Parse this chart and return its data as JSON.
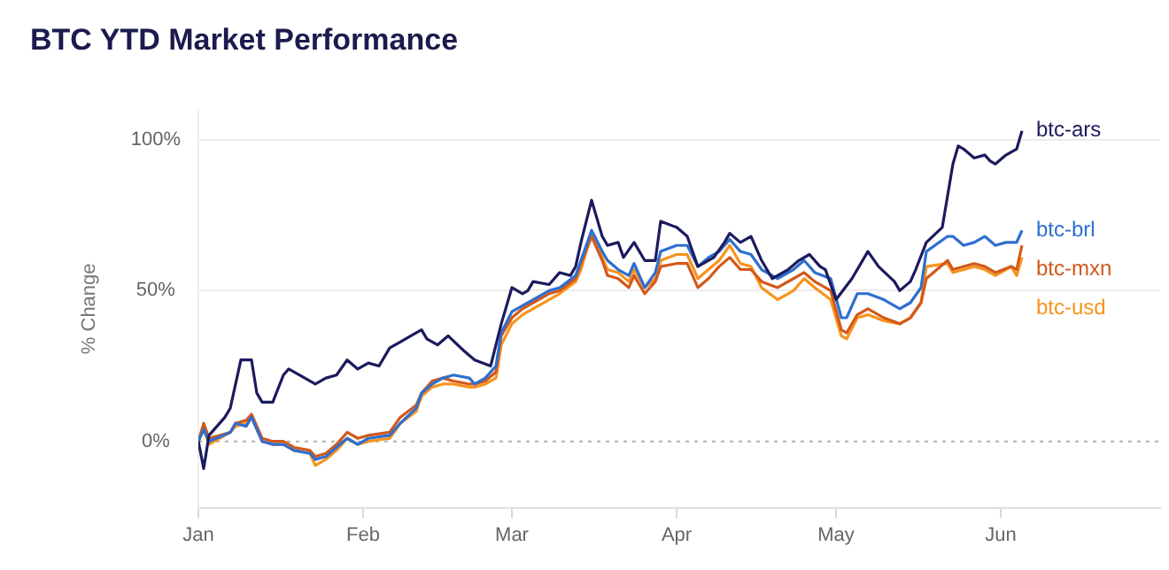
{
  "chart_data": {
    "type": "line",
    "title": "BTC YTD Market Performance",
    "ylabel": "% Change",
    "xlim": [
      "--01-01",
      "--07-01"
    ],
    "xticks": [
      {
        "value": "--01-01",
        "label": "Jan"
      },
      {
        "value": "--02-01",
        "label": "Feb"
      },
      {
        "value": "--03-01",
        "label": "Mar"
      },
      {
        "value": "--04-01",
        "label": "Apr"
      },
      {
        "value": "--05-01",
        "label": "May"
      },
      {
        "value": "--06-01",
        "label": "Jun"
      }
    ],
    "ylim": [
      -22,
      110
    ],
    "yticks": [
      {
        "value": 0,
        "label": "0%"
      },
      {
        "value": 50,
        "label": "50%"
      },
      {
        "value": 100,
        "label": "100%"
      }
    ],
    "grid": "y",
    "legend": false,
    "marker": "none",
    "line_style": "solid",
    "ref_lines": [
      {
        "axis": "y",
        "value": 0,
        "label": null,
        "color": "#b0b0b0",
        "line_style": "dotted"
      }
    ],
    "series": [
      {
        "name": "btc-ars",
        "color": "#1b1b5e",
        "x": [
          "--01-01",
          "--01-02",
          "--01-03",
          "--01-06",
          "--01-07",
          "--01-09",
          "--01-11",
          "--01-12",
          "--01-13",
          "--01-15",
          "--01-17",
          "--01-18",
          "--01-20",
          "--01-23",
          "--01-25",
          "--01-27",
          "--01-29",
          "--01-31",
          "--02-02",
          "--02-04",
          "--02-06",
          "--02-08",
          "--02-10",
          "--02-12",
          "--02-13",
          "--02-15",
          "--02-17",
          "--02-20",
          "--02-22",
          "--02-25",
          "--02-27",
          "--03-01",
          "--03-03",
          "--03-04",
          "--03-05",
          "--03-08",
          "--03-10",
          "--03-12",
          "--03-13",
          "--03-14",
          "--03-16",
          "--03-18",
          "--03-19",
          "--03-21",
          "--03-22",
          "--03-24",
          "--03-26",
          "--03-28",
          "--03-29",
          "--04-01",
          "--04-03",
          "--04-05",
          "--04-08",
          "--04-10",
          "--04-11",
          "--04-13",
          "--04-15",
          "--04-17",
          "--04-19",
          "--04-22",
          "--04-24",
          "--04-26",
          "--04-28",
          "--04-29",
          "--05-01",
          "--05-04",
          "--05-07",
          "--05-09",
          "--05-12",
          "--05-13",
          "--05-15",
          "--05-16",
          "--05-18",
          "--05-21",
          "--05-23",
          "--05-24",
          "--05-25",
          "--05-27",
          "--05-29",
          "--05-30",
          "--05-31",
          "--06-02",
          "--06-04",
          "--06-05"
        ],
        "values": [
          0,
          -9,
          2,
          8,
          11,
          27,
          27,
          16,
          13,
          13,
          22,
          24,
          22,
          19,
          21,
          22,
          27,
          24,
          26,
          25,
          31,
          33,
          35,
          37,
          34,
          32,
          35,
          30,
          27,
          25,
          39,
          51,
          49,
          50,
          53,
          52,
          56,
          55,
          58,
          66,
          80,
          68,
          65,
          66,
          61,
          66,
          60,
          60,
          73,
          71,
          68,
          58,
          61,
          66,
          69,
          66,
          68,
          60,
          54,
          57,
          60,
          62,
          58,
          57,
          47,
          54,
          63,
          58,
          53,
          50,
          53,
          57,
          66,
          71,
          92,
          98,
          97,
          94,
          95,
          93,
          92,
          95,
          97,
          103
        ]
      },
      {
        "name": "btc-brl",
        "color": "#2f6fd0",
        "x": [
          "--01-01",
          "--01-02",
          "--01-03",
          "--01-07",
          "--01-08",
          "--01-10",
          "--01-11",
          "--01-13",
          "--01-15",
          "--01-17",
          "--01-19",
          "--01-22",
          "--01-23",
          "--01-25",
          "--01-27",
          "--01-29",
          "--01-31",
          "--02-02",
          "--02-06",
          "--02-08",
          "--02-11",
          "--02-12",
          "--02-14",
          "--02-16",
          "--02-18",
          "--02-21",
          "--02-22",
          "--02-24",
          "--02-26",
          "--02-27",
          "--03-01",
          "--03-03",
          "--03-05",
          "--03-08",
          "--03-10",
          "--03-13",
          "--03-14",
          "--03-16",
          "--03-18",
          "--03-19",
          "--03-21",
          "--03-23",
          "--03-24",
          "--03-26",
          "--03-28",
          "--03-29",
          "--04-01",
          "--04-03",
          "--04-05",
          "--04-07",
          "--04-09",
          "--04-11",
          "--04-13",
          "--04-15",
          "--04-17",
          "--04-20",
          "--04-23",
          "--04-25",
          "--04-27",
          "--04-30",
          "--05-02",
          "--05-03",
          "--05-05",
          "--05-07",
          "--05-10",
          "--05-13",
          "--05-15",
          "--05-17",
          "--05-18",
          "--05-22",
          "--05-23",
          "--05-25",
          "--05-27",
          "--05-29",
          "--05-31",
          "--06-02",
          "--06-04",
          "--06-05"
        ],
        "values": [
          0,
          4,
          0,
          3,
          6,
          5,
          8,
          0,
          -1,
          -1,
          -3,
          -4,
          -6,
          -5,
          -2,
          1,
          -1,
          1,
          2,
          6,
          11,
          16,
          19,
          21,
          22,
          21,
          19,
          21,
          25,
          36,
          43,
          45,
          47,
          50,
          51,
          55,
          60,
          70,
          63,
          60,
          57,
          55,
          59,
          51,
          56,
          63,
          65,
          65,
          58,
          61,
          63,
          67,
          63,
          62,
          57,
          54,
          57,
          60,
          56,
          54,
          41,
          41,
          49,
          49,
          47,
          44,
          46,
          51,
          63,
          68,
          68,
          65,
          66,
          68,
          65,
          66,
          66,
          70
        ]
      },
      {
        "name": "btc-mxn",
        "color": "#d2591b",
        "x": [
          "--01-01",
          "--01-02",
          "--01-03",
          "--01-07",
          "--01-08",
          "--01-10",
          "--01-11",
          "--01-13",
          "--01-15",
          "--01-17",
          "--01-19",
          "--01-22",
          "--01-23",
          "--01-25",
          "--01-27",
          "--01-29",
          "--01-31",
          "--02-02",
          "--02-06",
          "--02-08",
          "--02-11",
          "--02-12",
          "--02-14",
          "--02-16",
          "--02-18",
          "--02-21",
          "--02-22",
          "--02-24",
          "--02-26",
          "--02-27",
          "--03-01",
          "--03-03",
          "--03-05",
          "--03-08",
          "--03-10",
          "--03-13",
          "--03-14",
          "--03-16",
          "--03-18",
          "--03-19",
          "--03-21",
          "--03-23",
          "--03-24",
          "--03-26",
          "--03-28",
          "--03-29",
          "--04-01",
          "--04-03",
          "--04-05",
          "--04-07",
          "--04-09",
          "--04-11",
          "--04-13",
          "--04-15",
          "--04-17",
          "--04-20",
          "--04-23",
          "--04-25",
          "--04-27",
          "--04-30",
          "--05-02",
          "--05-03",
          "--05-05",
          "--05-07",
          "--05-10",
          "--05-13",
          "--05-15",
          "--05-17",
          "--05-18",
          "--05-22",
          "--05-23",
          "--05-27",
          "--05-29",
          "--05-31",
          "--06-03",
          "--06-04",
          "--06-05"
        ],
        "values": [
          0,
          6,
          1,
          3,
          6,
          7,
          9,
          1,
          0,
          0,
          -2,
          -3,
          -5,
          -4,
          -1,
          3,
          1,
          2,
          3,
          8,
          12,
          16,
          20,
          21,
          20,
          19,
          19,
          20,
          23,
          35,
          41,
          44,
          46,
          49,
          50,
          54,
          59,
          68,
          60,
          55,
          54,
          51,
          55,
          49,
          53,
          58,
          59,
          59,
          51,
          54,
          58,
          61,
          57,
          57,
          53,
          51,
          54,
          56,
          53,
          50,
          37,
          36,
          42,
          44,
          41,
          39,
          41,
          46,
          54,
          60,
          57,
          59,
          58,
          56,
          58,
          57,
          65
        ]
      },
      {
        "name": "btc-usd",
        "color": "#f7941d",
        "x": [
          "--01-01",
          "--01-02",
          "--01-03",
          "--01-07",
          "--01-08",
          "--01-10",
          "--01-11",
          "--01-13",
          "--01-15",
          "--01-17",
          "--01-19",
          "--01-22",
          "--01-23",
          "--01-25",
          "--01-27",
          "--01-29",
          "--01-31",
          "--02-02",
          "--02-06",
          "--02-08",
          "--02-11",
          "--02-12",
          "--02-14",
          "--02-16",
          "--02-18",
          "--02-21",
          "--02-22",
          "--02-24",
          "--02-26",
          "--02-27",
          "--03-01",
          "--03-03",
          "--03-05",
          "--03-08",
          "--03-10",
          "--03-13",
          "--03-14",
          "--03-16",
          "--03-18",
          "--03-19",
          "--03-21",
          "--03-23",
          "--03-24",
          "--03-26",
          "--03-28",
          "--03-29",
          "--04-01",
          "--04-03",
          "--04-05",
          "--04-07",
          "--04-09",
          "--04-11",
          "--04-13",
          "--04-15",
          "--04-17",
          "--04-20",
          "--04-23",
          "--04-25",
          "--04-27",
          "--04-30",
          "--05-02",
          "--05-03",
          "--05-05",
          "--05-07",
          "--05-10",
          "--05-13",
          "--05-15",
          "--05-17",
          "--05-18",
          "--05-22",
          "--05-23",
          "--05-27",
          "--05-29",
          "--05-31",
          "--06-03",
          "--06-04",
          "--06-05"
        ],
        "values": [
          0,
          4,
          -1,
          3,
          5,
          6,
          8,
          0,
          -1,
          -1,
          -3,
          -4,
          -8,
          -6,
          -3,
          1,
          -1,
          0,
          1,
          6,
          10,
          15,
          18,
          19,
          19,
          18,
          18,
          19,
          21,
          32,
          39,
          42,
          44,
          47,
          49,
          53,
          57,
          69,
          61,
          57,
          56,
          53,
          57,
          51,
          54,
          60,
          62,
          62,
          54,
          57,
          60,
          65,
          59,
          58,
          51,
          47,
          50,
          54,
          51,
          47,
          35,
          34,
          41,
          42,
          40,
          39,
          41,
          46,
          58,
          59,
          56,
          58,
          57,
          55,
          58,
          55,
          61
        ]
      }
    ]
  }
}
